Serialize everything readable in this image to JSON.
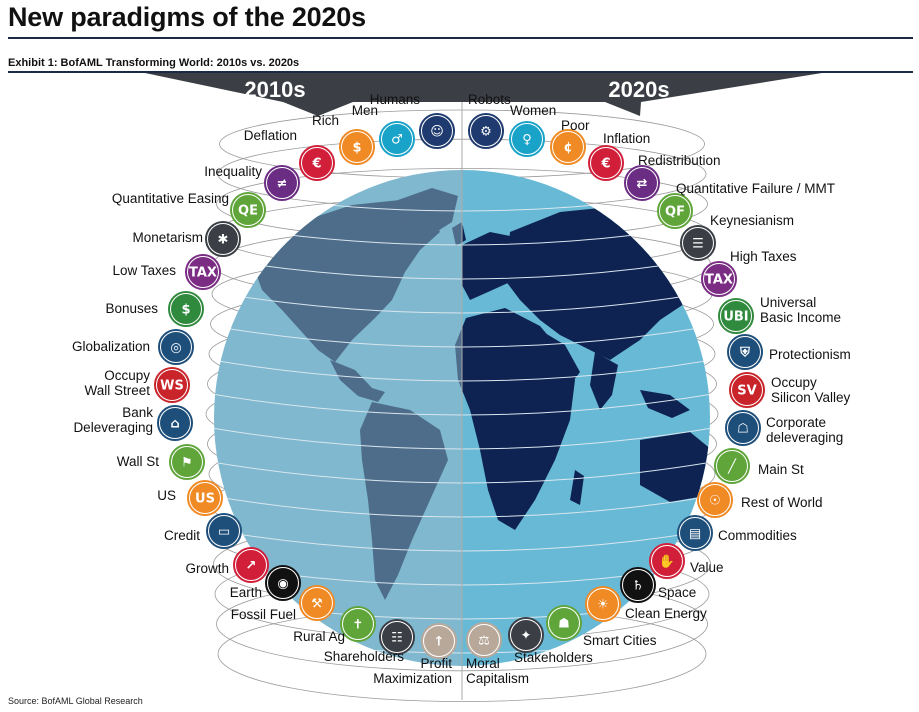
{
  "header": {
    "title": "New paradigms of the 2020s",
    "exhibit": "Exhibit 1: BofAML Transforming World: 2010s vs. 2020s",
    "source": "Source: BofAML Global Research"
  },
  "diagram": {
    "left_header": "2010s",
    "right_header": "2020s",
    "left_items": [
      {
        "label": [
          "Humans"
        ],
        "icon": "people-group-icon",
        "color": "#1e3a6e"
      },
      {
        "label": [
          "Men"
        ],
        "icon": "man-icon",
        "color": "#1aa3c9"
      },
      {
        "label": [
          "Rich"
        ],
        "icon": "money-bag-icon",
        "color": "#f08a24"
      },
      {
        "label": [
          "Deflation"
        ],
        "icon": "euro-down-icon",
        "color": "#d11f3a"
      },
      {
        "label": [
          "Inequality"
        ],
        "icon": "inequality-icon",
        "color": "#6b2d83"
      },
      {
        "label": [
          "Quantitative Easing"
        ],
        "icon": "qe-icon",
        "color": "#5fa53a"
      },
      {
        "label": [
          "Monetarism"
        ],
        "icon": "network-icon",
        "color": "#3b3f45"
      },
      {
        "label": [
          "Low Taxes"
        ],
        "icon": "tax-down-icon",
        "color": "#7b2d83"
      },
      {
        "label": [
          "Bonuses"
        ],
        "icon": "bonus-icon",
        "color": "#2f8a3d"
      },
      {
        "label": [
          "Globalization"
        ],
        "icon": "globe-icon",
        "color": "#1e4f7a"
      },
      {
        "label": [
          "Occupy",
          "Wall Street"
        ],
        "icon": "wall-street-sign-icon",
        "color": "#c8242a"
      },
      {
        "label": [
          "Bank",
          "Deleveraging"
        ],
        "icon": "bank-icon",
        "color": "#1e4f7a"
      },
      {
        "label": [
          "Wall St"
        ],
        "icon": "street-sign-icon",
        "color": "#5fa53a"
      },
      {
        "label": [
          "US"
        ],
        "icon": "us-map-icon",
        "color": "#f08a24"
      },
      {
        "label": [
          "Credit"
        ],
        "icon": "credit-card-icon",
        "color": "#1e4f7a"
      },
      {
        "label": [
          "Growth"
        ],
        "icon": "growth-chart-icon",
        "color": "#d11f3a"
      },
      {
        "label": [
          "Earth"
        ],
        "icon": "earth-icon",
        "color": "#111111"
      },
      {
        "label": [
          "Fossil Fuel"
        ],
        "icon": "oil-pump-icon",
        "color": "#f08a24"
      },
      {
        "label": [
          "Rural Ag"
        ],
        "icon": "scarecrow-icon",
        "color": "#5fa53a"
      },
      {
        "label": [
          "Shareholders"
        ],
        "icon": "shareholders-icon",
        "color": "#3b3f45"
      },
      {
        "label": [
          "Profit",
          "Maximization"
        ],
        "icon": "profit-icon",
        "color": "#b8a89a"
      }
    ],
    "right_items": [
      {
        "label": [
          "Robots"
        ],
        "icon": "robot-icon",
        "color": "#1e3a6e"
      },
      {
        "label": [
          "Women"
        ],
        "icon": "woman-icon",
        "color": "#1aa3c9"
      },
      {
        "label": [
          "Poor"
        ],
        "icon": "poor-bag-icon",
        "color": "#f08a24"
      },
      {
        "label": [
          "Inflation"
        ],
        "icon": "euro-up-icon",
        "color": "#d11f3a"
      },
      {
        "label": [
          "Redistribution"
        ],
        "icon": "redistribution-icon",
        "color": "#6b2d83"
      },
      {
        "label": [
          "Quantitative Failure / MMT"
        ],
        "icon": "qf-icon",
        "color": "#5fa53a"
      },
      {
        "label": [
          "Keynesianism"
        ],
        "icon": "ledger-icon",
        "color": "#3b3f45"
      },
      {
        "label": [
          "High Taxes"
        ],
        "icon": "tax-up-icon",
        "color": "#7b2d83"
      },
      {
        "label": [
          "Universal",
          "Basic Income"
        ],
        "icon": "ubi-icon",
        "color": "#2f8a3d"
      },
      {
        "label": [
          "Protectionism"
        ],
        "icon": "shield-lock-icon",
        "color": "#1e4f7a"
      },
      {
        "label": [
          "Occupy",
          "Silicon Valley"
        ],
        "icon": "silicon-valley-icon",
        "color": "#c8242a"
      },
      {
        "label": [
          "Corporate",
          "deleveraging"
        ],
        "icon": "corporate-building-icon",
        "color": "#1e4f7a"
      },
      {
        "label": [
          "Main St"
        ],
        "icon": "road-icon",
        "color": "#5fa53a"
      },
      {
        "label": [
          "Rest of World"
        ],
        "icon": "world-map-icon",
        "color": "#f08a24"
      },
      {
        "label": [
          "Commodities"
        ],
        "icon": "commodities-icon",
        "color": "#1e4f7a"
      },
      {
        "label": [
          "Value"
        ],
        "icon": "value-hand-icon",
        "color": "#d11f3a"
      },
      {
        "label": [
          "Space"
        ],
        "icon": "planet-icon",
        "color": "#111111"
      },
      {
        "label": [
          "Clean Energy"
        ],
        "icon": "lightbulb-icon",
        "color": "#f08a24"
      },
      {
        "label": [
          "Smart Cities"
        ],
        "icon": "smart-city-icon",
        "color": "#5fa53a"
      },
      {
        "label": [
          "Stakeholders"
        ],
        "icon": "stakeholders-icon",
        "color": "#3b3f45"
      },
      {
        "label": [
          "Moral",
          "Capitalism"
        ],
        "icon": "handshake-icon",
        "color": "#b8a89a"
      }
    ]
  }
}
